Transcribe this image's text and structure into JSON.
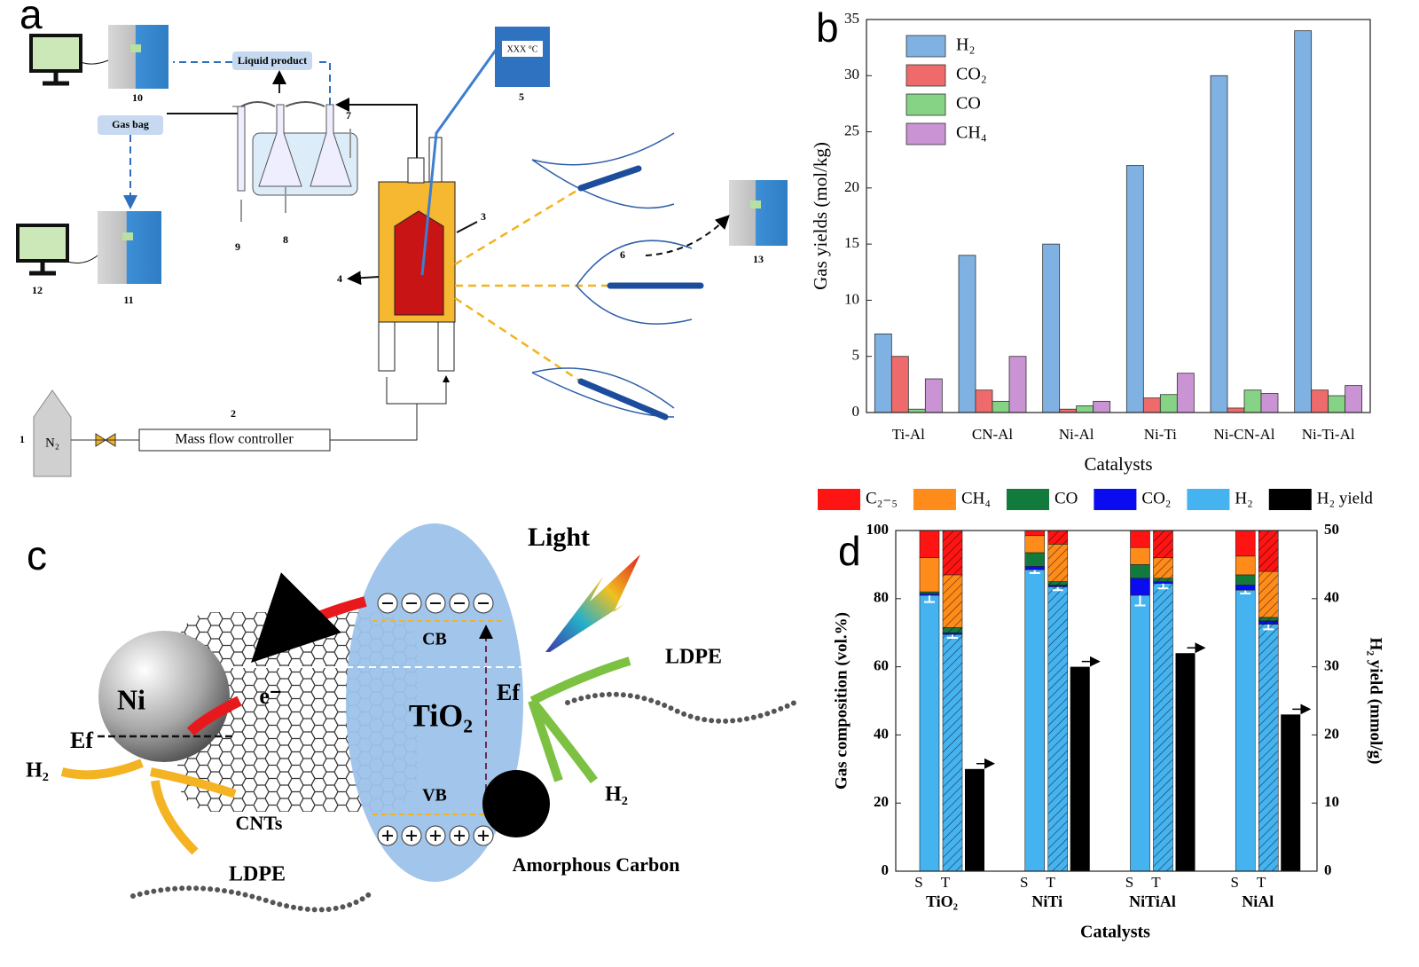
{
  "panel_labels": [
    "a",
    "b",
    "c",
    "d"
  ],
  "diagram_a": {
    "numbers": [
      "1",
      "2",
      "3",
      "4",
      "5",
      "6",
      "7",
      "8",
      "9",
      "10",
      "11",
      "12",
      "13"
    ],
    "liquid_product": "Liquid product",
    "gas_bag": "Gas bag",
    "mass_flow_controller": "Mass flow controller",
    "n2": "N₂",
    "temperature_display": "XXX °C"
  },
  "diagram_c": {
    "light": "Light",
    "ldpe_right": "LDPE",
    "ldpe_bottom": "LDPE",
    "electron": "e⁻",
    "cb": "CB",
    "vb": "VB",
    "tio2": "TiO₂",
    "ni": "Ni",
    "ef_left": "Ef",
    "ef_right": "Ef",
    "h2_left": "H₂",
    "h2_right": "H₂",
    "cnts": "CNTs",
    "amorphous_carbon": "Amorphous Carbon"
  },
  "chart_data": [
    {
      "type": "bar",
      "x_label": "Catalysts",
      "y_label": "Gas yields (mol/kg)",
      "categories": [
        "Ti-Al",
        "CN-Al",
        "Ni-Al",
        "Ni-Ti",
        "Ni-CN-Al",
        "Ni-Ti-Al"
      ],
      "series": [
        {
          "name": "H₂",
          "color": "#7fb2e2",
          "values": [
            7,
            14,
            15,
            22,
            30,
            34
          ]
        },
        {
          "name": "CO₂",
          "color": "#ef6b6b",
          "values": [
            5,
            2,
            0.3,
            1.3,
            0.4,
            2
          ]
        },
        {
          "name": "CO",
          "color": "#86d386",
          "values": [
            0.3,
            1,
            0.6,
            1.6,
            2,
            1.5
          ]
        },
        {
          "name": "CH₄",
          "color": "#c993d4",
          "values": [
            3,
            5,
            1,
            3.5,
            1.7,
            2.4
          ]
        }
      ],
      "ylim": [
        0,
        35
      ],
      "yticks": [
        0,
        5,
        10,
        15,
        20,
        25,
        30,
        35
      ],
      "grid": false,
      "legend": "top-left"
    },
    {
      "type": "stacked-bar",
      "x_label": "Catalysts",
      "y_label": "Gas composition (vol.%)",
      "y2_label": "H₂ yield (mmol/g)",
      "groups": [
        "TiO₂",
        "NiTi",
        "NiTiAl",
        "NiAl"
      ],
      "subcategories": [
        "S",
        "T"
      ],
      "series": [
        {
          "name": "C₂₋₅",
          "color": "#ff1414",
          "values": [
            8,
            13,
            1.5,
            4,
            5,
            8,
            7.5,
            12
          ]
        },
        {
          "name": "CH₄",
          "color": "#ff8c1a",
          "values": [
            10,
            15.5,
            5,
            11,
            5,
            6,
            5.5,
            13.5
          ]
        },
        {
          "name": "CO",
          "color": "#127a3c",
          "values": [
            0.5,
            1.5,
            4,
            1,
            4,
            1,
            3,
            1
          ]
        },
        {
          "name": "CO₂",
          "color": "#0b0bf0",
          "values": [
            0.5,
            0.5,
            1,
            0.5,
            5,
            0.5,
            1.5,
            1
          ]
        },
        {
          "name": "H₂",
          "color": "#45b3f0",
          "values": [
            81,
            69.5,
            88.5,
            83.5,
            81,
            84.5,
            82.5,
            72.5
          ],
          "errors": [
            2,
            1,
            1,
            1,
            3,
            1.5,
            1,
            1.5
          ]
        },
        {
          "name": "H₂ yield",
          "color": "#000000",
          "axis": "y2",
          "values": [
            15,
            30,
            32,
            23
          ]
        }
      ],
      "ylim": [
        0,
        100
      ],
      "yticks": [
        0,
        20,
        40,
        60,
        80,
        100
      ],
      "y2lim": [
        0,
        50
      ],
      "y2ticks": [
        0,
        10,
        20,
        30,
        40,
        50
      ],
      "grid": false,
      "legend": "top"
    }
  ]
}
